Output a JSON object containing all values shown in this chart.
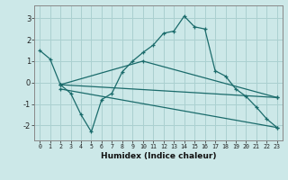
{
  "xlabel": "Humidex (Indice chaleur)",
  "xlim": [
    -0.5,
    23.5
  ],
  "ylim": [
    -2.7,
    3.6
  ],
  "yticks": [
    -2,
    -1,
    0,
    1,
    2,
    3
  ],
  "xticks": [
    0,
    1,
    2,
    3,
    4,
    5,
    6,
    7,
    8,
    9,
    10,
    11,
    12,
    13,
    14,
    15,
    16,
    17,
    18,
    19,
    20,
    21,
    22,
    23
  ],
  "bg_color": "#cce8e8",
  "grid_color": "#aad0d0",
  "line_color": "#1a6b6b",
  "lines": [
    {
      "x": [
        0,
        1,
        2,
        10,
        23
      ],
      "y": [
        1.5,
        1.1,
        -0.1,
        1.0,
        -0.7
      ]
    },
    {
      "x": [
        2,
        3,
        4,
        5,
        6,
        7,
        8,
        9,
        10,
        11,
        12,
        13,
        14,
        15,
        16,
        17,
        18,
        19,
        20,
        21,
        22,
        23
      ],
      "y": [
        -0.1,
        -0.5,
        -1.5,
        -2.3,
        -0.8,
        -0.5,
        0.5,
        1.0,
        1.4,
        1.75,
        2.3,
        2.4,
        3.1,
        2.6,
        2.5,
        0.55,
        0.3,
        -0.3,
        -0.65,
        -1.15,
        -1.7,
        -2.1
      ]
    },
    {
      "x": [
        2,
        23
      ],
      "y": [
        -0.1,
        -0.7
      ]
    },
    {
      "x": [
        2,
        23
      ],
      "y": [
        -0.3,
        -2.1
      ]
    }
  ]
}
